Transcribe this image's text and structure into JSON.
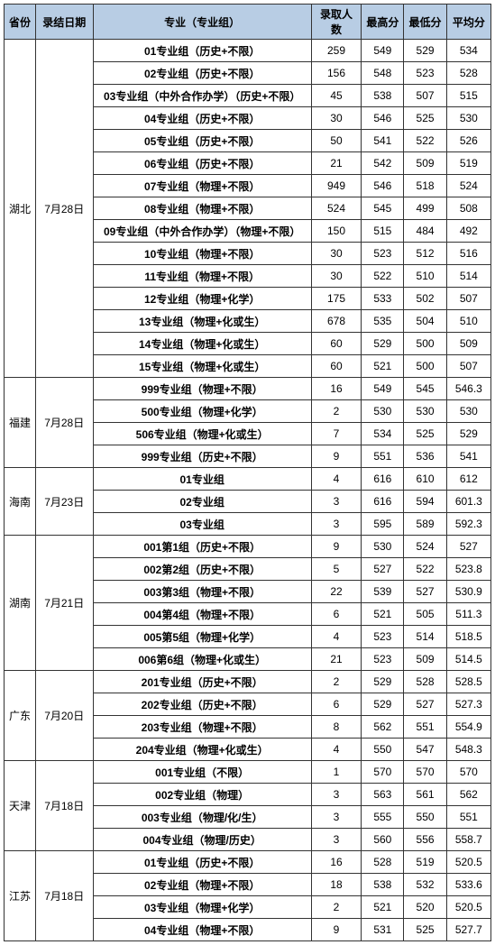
{
  "headers": [
    "省份",
    "录结日期",
    "专业（专业组）",
    "录取人数",
    "最高分",
    "最低分",
    "平均分"
  ],
  "groups": [
    {
      "province": "湖北",
      "date": "7月28日",
      "rows": [
        [
          "01专业组（历史+不限）",
          "259",
          "549",
          "529",
          "534"
        ],
        [
          "02专业组（历史+不限）",
          "156",
          "548",
          "523",
          "528"
        ],
        [
          "03专业组（中外合作办学）（历史+不限）",
          "45",
          "538",
          "507",
          "515"
        ],
        [
          "04专业组（历史+不限）",
          "30",
          "546",
          "525",
          "530"
        ],
        [
          "05专业组（历史+不限）",
          "50",
          "541",
          "522",
          "526"
        ],
        [
          "06专业组（历史+不限）",
          "21",
          "542",
          "509",
          "519"
        ],
        [
          "07专业组（物理+不限）",
          "949",
          "546",
          "518",
          "524"
        ],
        [
          "08专业组（物理+不限）",
          "524",
          "545",
          "499",
          "508"
        ],
        [
          "09专业组（中外合作办学）（物理+不限）",
          "150",
          "515",
          "484",
          "492"
        ],
        [
          "10专业组（物理+不限）",
          "30",
          "523",
          "512",
          "516"
        ],
        [
          "11专业组（物理+不限）",
          "30",
          "522",
          "510",
          "514"
        ],
        [
          "12专业组（物理+化学）",
          "175",
          "533",
          "502",
          "507"
        ],
        [
          "13专业组（物理+化或生）",
          "678",
          "535",
          "504",
          "510"
        ],
        [
          "14专业组（物理+化或生）",
          "60",
          "529",
          "500",
          "509"
        ],
        [
          "15专业组（物理+化或生）",
          "60",
          "521",
          "500",
          "507"
        ]
      ]
    },
    {
      "province": "福建",
      "date": "7月28日",
      "rows": [
        [
          "999专业组（物理+不限）",
          "16",
          "549",
          "545",
          "546.3"
        ],
        [
          "500专业组（物理+化学）",
          "2",
          "530",
          "530",
          "530"
        ],
        [
          "506专业组（物理+化或生）",
          "7",
          "534",
          "525",
          "529"
        ],
        [
          "999专业组（历史+不限）",
          "9",
          "551",
          "536",
          "541"
        ]
      ]
    },
    {
      "province": "海南",
      "date": "7月23日",
      "rows": [
        [
          "01专业组",
          "4",
          "616",
          "610",
          "612"
        ],
        [
          "02专业组",
          "3",
          "616",
          "594",
          "601.3"
        ],
        [
          "03专业组",
          "3",
          "595",
          "589",
          "592.3"
        ]
      ]
    },
    {
      "province": "湖南",
      "date": "7月21日",
      "rows": [
        [
          "001第1组（历史+不限）",
          "9",
          "530",
          "524",
          "527"
        ],
        [
          "002第2组（历史+不限）",
          "5",
          "527",
          "522",
          "523.8"
        ],
        [
          "003第3组（物理+不限）",
          "22",
          "539",
          "527",
          "530.9"
        ],
        [
          "004第4组（物理+不限）",
          "6",
          "521",
          "505",
          "511.3"
        ],
        [
          "005第5组（物理+化学）",
          "4",
          "523",
          "514",
          "518.5"
        ],
        [
          "006第6组（物理+化或生）",
          "21",
          "523",
          "509",
          "514.5"
        ]
      ]
    },
    {
      "province": "广东",
      "date": "7月20日",
      "rows": [
        [
          "201专业组（历史+不限）",
          "2",
          "529",
          "528",
          "528.5"
        ],
        [
          "202专业组（历史+不限）",
          "6",
          "529",
          "527",
          "527.3"
        ],
        [
          "203专业组（物理+不限）",
          "8",
          "562",
          "551",
          "554.9"
        ],
        [
          "204专业组（物理+化或生）",
          "4",
          "550",
          "547",
          "548.3"
        ]
      ]
    },
    {
      "province": "天津",
      "date": "7月18日",
      "rows": [
        [
          "001专业组（不限）",
          "1",
          "570",
          "570",
          "570"
        ],
        [
          "002专业组（物理）",
          "3",
          "563",
          "561",
          "562"
        ],
        [
          "003专业组（物理/化/生）",
          "3",
          "555",
          "550",
          "551"
        ],
        [
          "004专业组（物理/历史）",
          "3",
          "560",
          "556",
          "558.7"
        ]
      ]
    },
    {
      "province": "江苏",
      "date": "7月18日",
      "rows": [
        [
          "01专业组（历史+不限）",
          "16",
          "528",
          "519",
          "520.5"
        ],
        [
          "02专业组（物理+不限）",
          "18",
          "538",
          "532",
          "533.6"
        ],
        [
          "03专业组（物理+化学）",
          "2",
          "521",
          "520",
          "520.5"
        ],
        [
          "04专业组（物理+不限）",
          "9",
          "531",
          "525",
          "527.7"
        ]
      ]
    }
  ]
}
